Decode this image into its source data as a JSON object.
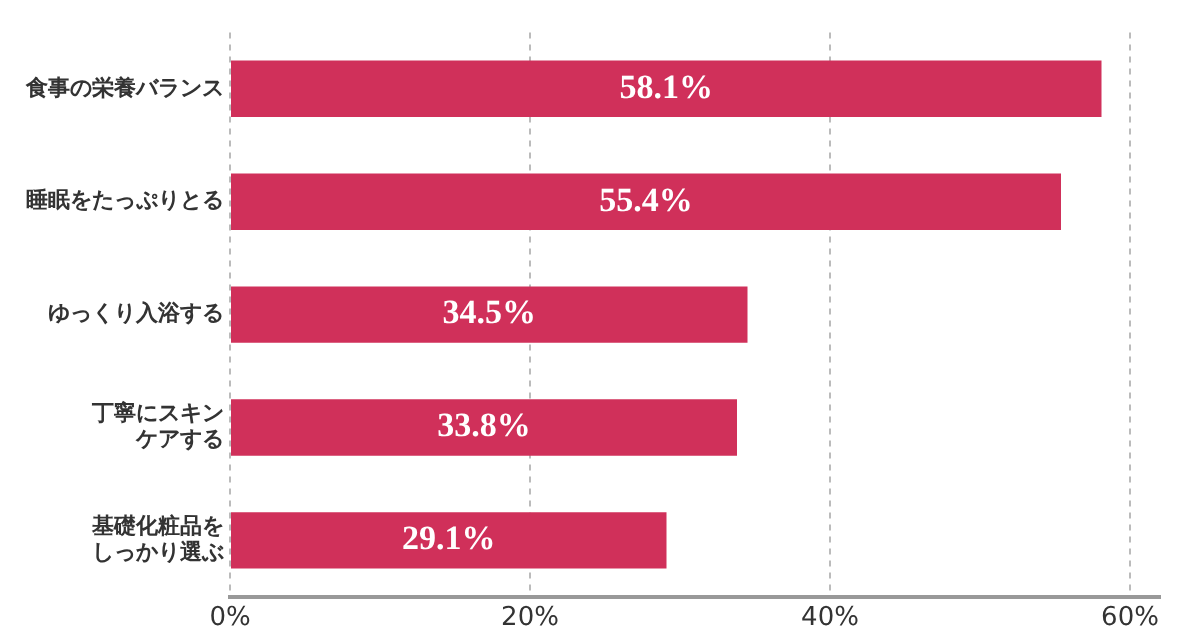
{
  "chart_data": {
    "type": "bar",
    "orientation": "horizontal",
    "categories": [
      "食事の栄養バランス",
      "睡眠をたっぷりとる",
      "ゆっくり入浴する",
      "丁寧にスキンケアする",
      "基礎化粧品をしっかり選ぶ"
    ],
    "values": [
      58.1,
      55.4,
      34.5,
      33.8,
      29.1
    ],
    "color": "#d0305a",
    "value_labels": [
      "58.1%",
      "55.4%",
      "34.5%",
      "33.8%",
      "29.1%"
    ],
    "xlim": [
      0,
      62
    ],
    "xticks": [
      {
        "value": 0,
        "label": "0%"
      },
      {
        "value": 20,
        "label": "20%"
      },
      {
        "value": 40,
        "label": "40%"
      },
      {
        "value": 60,
        "label": "60%"
      }
    ],
    "grid": "x",
    "legend": false
  }
}
